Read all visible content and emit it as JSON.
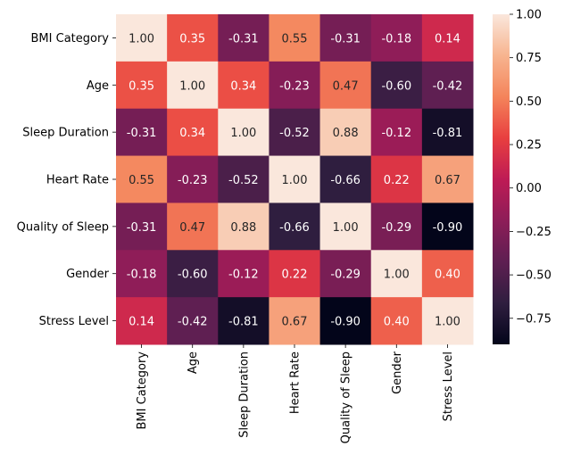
{
  "chart_data": {
    "type": "heatmap",
    "title": "",
    "xlabel": "",
    "ylabel": "",
    "x_categories": [
      "BMI Category",
      "Age",
      "Sleep Duration",
      "Heart Rate",
      "Quality of Sleep",
      "Gender",
      "Stress Level"
    ],
    "y_categories": [
      "BMI Category",
      "Age",
      "Sleep Duration",
      "Heart Rate",
      "Quality of Sleep",
      "Gender",
      "Stress Level"
    ],
    "values": [
      [
        1.0,
        0.35,
        -0.31,
        0.55,
        -0.31,
        -0.18,
        0.14
      ],
      [
        0.35,
        1.0,
        0.34,
        -0.23,
        0.47,
        -0.6,
        -0.42
      ],
      [
        -0.31,
        0.34,
        1.0,
        -0.52,
        0.88,
        -0.12,
        -0.81
      ],
      [
        0.55,
        -0.23,
        -0.52,
        1.0,
        -0.66,
        0.22,
        0.67
      ],
      [
        -0.31,
        0.47,
        0.88,
        -0.66,
        1.0,
        -0.29,
        -0.9
      ],
      [
        -0.18,
        -0.6,
        -0.12,
        0.22,
        -0.29,
        1.0,
        0.4
      ],
      [
        0.14,
        -0.42,
        -0.81,
        0.67,
        -0.9,
        0.4,
        1.0
      ]
    ],
    "value_labels": [
      [
        "1.00",
        "0.35",
        "-0.31",
        "0.55",
        "-0.31",
        "-0.18",
        "0.14"
      ],
      [
        "0.35",
        "1.00",
        "0.34",
        "-0.23",
        "0.47",
        "-0.60",
        "-0.42"
      ],
      [
        "-0.31",
        "0.34",
        "1.00",
        "-0.52",
        "0.88",
        "-0.12",
        "-0.81"
      ],
      [
        "0.55",
        "-0.23",
        "-0.52",
        "1.00",
        "-0.66",
        "0.22",
        "0.67"
      ],
      [
        "-0.31",
        "0.47",
        "0.88",
        "-0.66",
        "1.00",
        "-0.29",
        "-0.90"
      ],
      [
        "-0.18",
        "-0.60",
        "-0.12",
        "0.22",
        "-0.29",
        "1.00",
        "0.40"
      ],
      [
        "0.14",
        "-0.42",
        "-0.81",
        "0.67",
        "-0.90",
        "0.40",
        "1.00"
      ]
    ],
    "colorbar": {
      "min": -0.9,
      "max": 1.0,
      "ticks": [
        1.0,
        0.75,
        0.5,
        0.25,
        0.0,
        -0.25,
        -0.5,
        -0.75
      ],
      "tick_labels": [
        "1.00",
        "0.75",
        "0.50",
        "0.25",
        "0.00",
        "−0.25",
        "−0.50",
        "−0.75"
      ]
    },
    "colormap": {
      "name": "rocket",
      "stops": [
        "#03051a",
        "#2f1e3f",
        "#5e1f52",
        "#8d1d58",
        "#be1b55",
        "#e83f3f",
        "#f4845b",
        "#f7b48f",
        "#fae7dc"
      ]
    },
    "grid": false,
    "legend": "colorbar-right"
  }
}
